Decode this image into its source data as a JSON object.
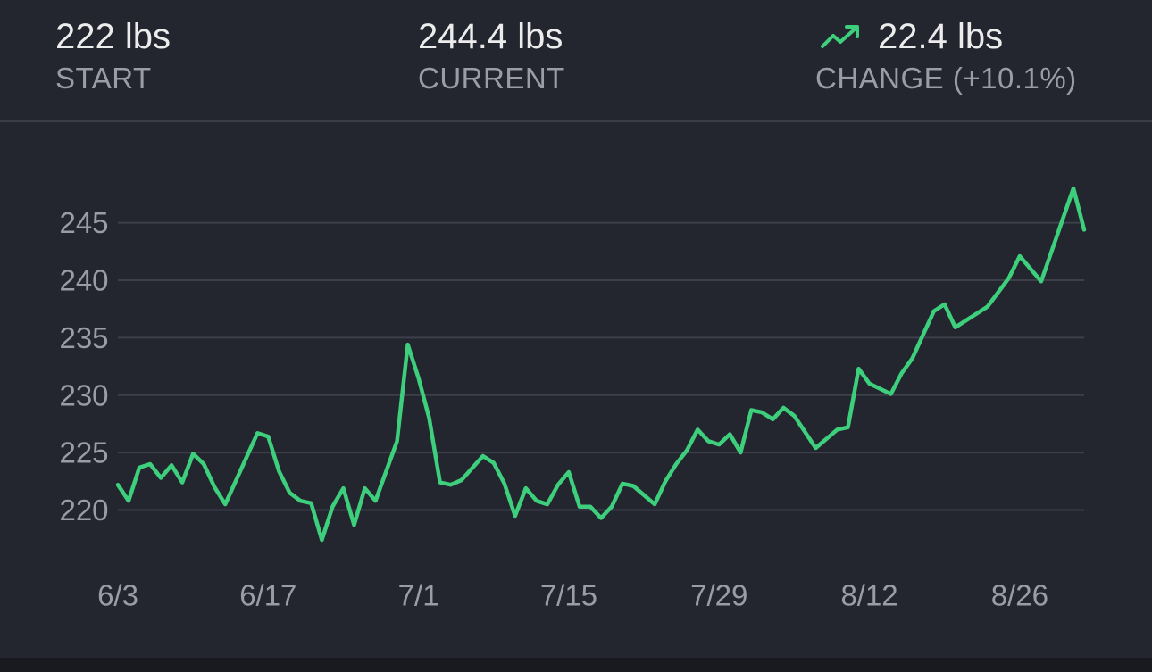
{
  "stats": {
    "start": {
      "value": "222 lbs",
      "label": "START"
    },
    "current": {
      "value": "244.4 lbs",
      "label": "CURRENT"
    },
    "change": {
      "value": "22.4 lbs",
      "label": "CHANGE (+10.1%)",
      "icon": "trending-up-icon"
    }
  },
  "colors": {
    "background": "#23252f",
    "line": "#3ecf7d",
    "grid": "#3d404b",
    "tick_text": "#9a9ca6",
    "footer": "#181a20"
  },
  "chart_data": {
    "type": "line",
    "title": "",
    "xlabel": "",
    "ylabel": "",
    "ylim": [
      217.4,
      248.0
    ],
    "y_ticks": [
      220,
      225,
      230,
      235,
      240,
      245
    ],
    "x_ticks": [
      "6/3",
      "6/17",
      "7/1",
      "7/15",
      "7/29",
      "8/12",
      "8/26"
    ],
    "x_start": "2024-06-03",
    "x_end": "2024-09-01",
    "grid": true,
    "series": [
      {
        "name": "",
        "points": [
          [
            "2024-06-03",
            222.2
          ],
          [
            "2024-06-04",
            220.8
          ],
          [
            "2024-06-05",
            223.7
          ],
          [
            "2024-06-06",
            224.0
          ],
          [
            "2024-06-07",
            222.8
          ],
          [
            "2024-06-08",
            223.9
          ],
          [
            "2024-06-09",
            222.4
          ],
          [
            "2024-06-10",
            224.9
          ],
          [
            "2024-06-11",
            224.0
          ],
          [
            "2024-06-12",
            222.0
          ],
          [
            "2024-06-13",
            220.5
          ],
          [
            "2024-06-16",
            226.7
          ],
          [
            "2024-06-17",
            226.4
          ],
          [
            "2024-06-18",
            223.4
          ],
          [
            "2024-06-19",
            221.5
          ],
          [
            "2024-06-20",
            220.8
          ],
          [
            "2024-06-21",
            220.6
          ],
          [
            "2024-06-22",
            217.4
          ],
          [
            "2024-06-23",
            220.3
          ],
          [
            "2024-06-24",
            221.9
          ],
          [
            "2024-06-25",
            218.7
          ],
          [
            "2024-06-26",
            221.9
          ],
          [
            "2024-06-27",
            220.8
          ],
          [
            "2024-06-29",
            226.0
          ],
          [
            "2024-06-30",
            234.4
          ],
          [
            "2024-07-01",
            231.5
          ],
          [
            "2024-07-02",
            228.0
          ],
          [
            "2024-07-03",
            222.4
          ],
          [
            "2024-07-04",
            222.2
          ],
          [
            "2024-07-05",
            222.6
          ],
          [
            "2024-07-07",
            224.7
          ],
          [
            "2024-07-08",
            224.1
          ],
          [
            "2024-07-09",
            222.3
          ],
          [
            "2024-07-10",
            219.5
          ],
          [
            "2024-07-11",
            221.9
          ],
          [
            "2024-07-12",
            220.8
          ],
          [
            "2024-07-13",
            220.5
          ],
          [
            "2024-07-14",
            222.2
          ],
          [
            "2024-07-15",
            223.3
          ],
          [
            "2024-07-16",
            220.3
          ],
          [
            "2024-07-17",
            220.3
          ],
          [
            "2024-07-18",
            219.3
          ],
          [
            "2024-07-19",
            220.3
          ],
          [
            "2024-07-20",
            222.3
          ],
          [
            "2024-07-21",
            222.1
          ],
          [
            "2024-07-23",
            220.5
          ],
          [
            "2024-07-24",
            222.5
          ],
          [
            "2024-07-25",
            224.0
          ],
          [
            "2024-07-26",
            225.2
          ],
          [
            "2024-07-27",
            227.0
          ],
          [
            "2024-07-28",
            226.0
          ],
          [
            "2024-07-29",
            225.7
          ],
          [
            "2024-07-30",
            226.6
          ],
          [
            "2024-07-31",
            225.0
          ],
          [
            "2024-08-01",
            228.7
          ],
          [
            "2024-08-02",
            228.5
          ],
          [
            "2024-08-03",
            227.9
          ],
          [
            "2024-08-04",
            228.9
          ],
          [
            "2024-08-05",
            228.2
          ],
          [
            "2024-08-07",
            225.4
          ],
          [
            "2024-08-09",
            227.0
          ],
          [
            "2024-08-10",
            227.2
          ],
          [
            "2024-08-11",
            232.3
          ],
          [
            "2024-08-12",
            231.0
          ],
          [
            "2024-08-14",
            230.1
          ],
          [
            "2024-08-15",
            231.9
          ],
          [
            "2024-08-16",
            233.2
          ],
          [
            "2024-08-18",
            237.3
          ],
          [
            "2024-08-19",
            237.9
          ],
          [
            "2024-08-20",
            235.9
          ],
          [
            "2024-08-23",
            237.7
          ],
          [
            "2024-08-25",
            240.2
          ],
          [
            "2024-08-26",
            242.1
          ],
          [
            "2024-08-28",
            239.9
          ],
          [
            "2024-08-31",
            248.0
          ],
          [
            "2024-09-01",
            244.4
          ]
        ]
      }
    ]
  }
}
